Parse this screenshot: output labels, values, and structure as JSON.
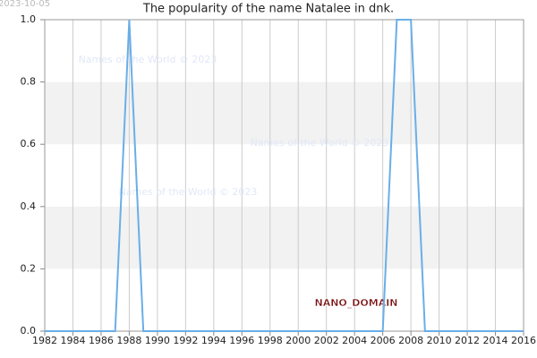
{
  "chart_data": {
    "type": "line",
    "title": "The popularity of the name Natalee in dnk.",
    "date": "2023-10-05",
    "watermarks": [
      "Names of the World © 2023",
      "Names of the World © 2023",
      "Names of the World © 2023",
      "NANO_DOMAIN"
    ],
    "x": [
      1982,
      1983,
      1984,
      1985,
      1986,
      1987,
      1988,
      1989,
      1990,
      1991,
      1992,
      1993,
      1994,
      1995,
      1996,
      1997,
      1998,
      1999,
      2000,
      2001,
      2002,
      2003,
      2004,
      2005,
      2006,
      2007,
      2008,
      2009,
      2010,
      2011,
      2012,
      2013,
      2014,
      2015,
      2016
    ],
    "series": [
      {
        "color": "#6aaee8",
        "values": [
          0,
          0,
          0,
          0,
          0,
          0,
          1,
          0,
          0,
          0,
          0,
          0,
          0,
          0,
          0,
          0,
          0,
          0,
          0,
          0,
          0,
          0,
          0,
          0,
          0,
          1,
          1,
          0,
          0,
          0,
          0,
          0,
          0,
          0,
          0
        ]
      }
    ],
    "xlim": [
      1982,
      2016
    ],
    "xticks": [
      1982,
      1984,
      1986,
      1988,
      1990,
      1992,
      1994,
      1996,
      1998,
      2000,
      2002,
      2004,
      2006,
      2008,
      2010,
      2012,
      2014,
      2016
    ],
    "ylim": [
      0,
      1
    ],
    "yticks": [
      {
        "value": 0,
        "label": "0.0"
      },
      0.2,
      0.4,
      0.6,
      0.8,
      {
        "value": 1,
        "label": "1.0"
      }
    ],
    "grid": true
  }
}
